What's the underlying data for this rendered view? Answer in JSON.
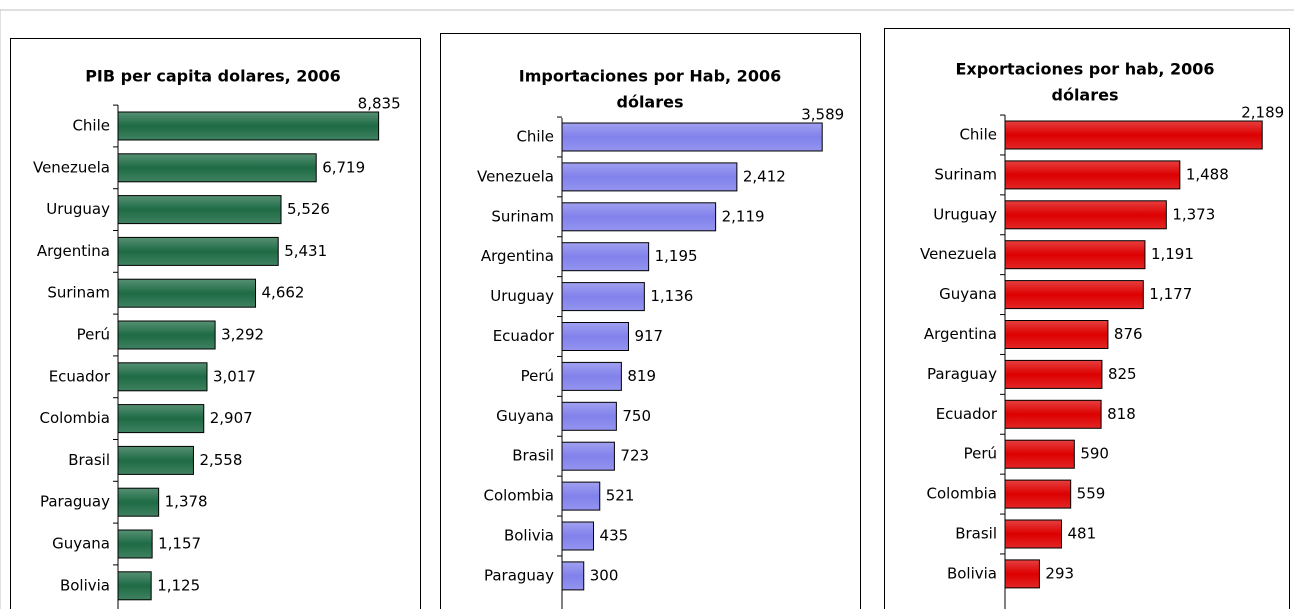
{
  "chart_data": [
    {
      "type": "bar",
      "orientation": "horizontal",
      "title": [
        "PIB per capita dolares, 2006"
      ],
      "categories": [
        "Chile",
        "Venezuela",
        "Uruguay",
        "Argentina",
        "Surinam",
        "Perú",
        "Ecuador",
        "Colombia",
        "Brasil",
        "Paraguay",
        "Guyana",
        "Bolivia"
      ],
      "values": [
        8835,
        6719,
        5526,
        5431,
        4662,
        3292,
        3017,
        2907,
        2558,
        1378,
        1157,
        1125
      ],
      "value_labels": [
        "8,835",
        "6,719",
        "5,526",
        "5,431",
        "4,662",
        "3,292",
        "3,017",
        "2,907",
        "2,558",
        "1,378",
        "1,157",
        "1,125"
      ],
      "color": "#1e6b45",
      "xlim": [
        0,
        10000
      ]
    },
    {
      "type": "bar",
      "orientation": "horizontal",
      "title": [
        "Importaciones por Hab, 2006",
        "dólares"
      ],
      "categories": [
        "Chile",
        "Venezuela",
        "Surinam",
        "Argentina",
        "Uruguay",
        "Ecuador",
        "Perú",
        "Guyana",
        "Brasil",
        "Colombia",
        "Bolivia",
        "Paraguay"
      ],
      "values": [
        3589,
        2412,
        2119,
        1195,
        1136,
        917,
        819,
        750,
        723,
        521,
        435,
        300
      ],
      "value_labels": [
        "3,589",
        "2,412",
        "2,119",
        "1,195",
        "1,136",
        "917",
        "819",
        "750",
        "723",
        "521",
        "435",
        "300"
      ],
      "color": "#8181ec",
      "xlim": [
        0,
        4000
      ]
    },
    {
      "type": "bar",
      "orientation": "horizontal",
      "title": [
        "Exportaciones por hab, 2006",
        "dólares"
      ],
      "categories": [
        "Chile",
        "Surinam",
        "Uruguay",
        "Venezuela",
        "Guyana",
        "Argentina",
        "Paraguay",
        "Ecuador",
        "Perú",
        "Colombia",
        "Brasil",
        "Bolivia"
      ],
      "values": [
        2189,
        1488,
        1373,
        1191,
        1177,
        876,
        825,
        818,
        590,
        559,
        481,
        293
      ],
      "value_labels": [
        "2,189",
        "1,488",
        "1,373",
        "1,191",
        "1,177",
        "876",
        "825",
        "818",
        "590",
        "559",
        "481",
        "293"
      ],
      "color": "#dd0000",
      "xlim": [
        0,
        2400
      ]
    }
  ]
}
